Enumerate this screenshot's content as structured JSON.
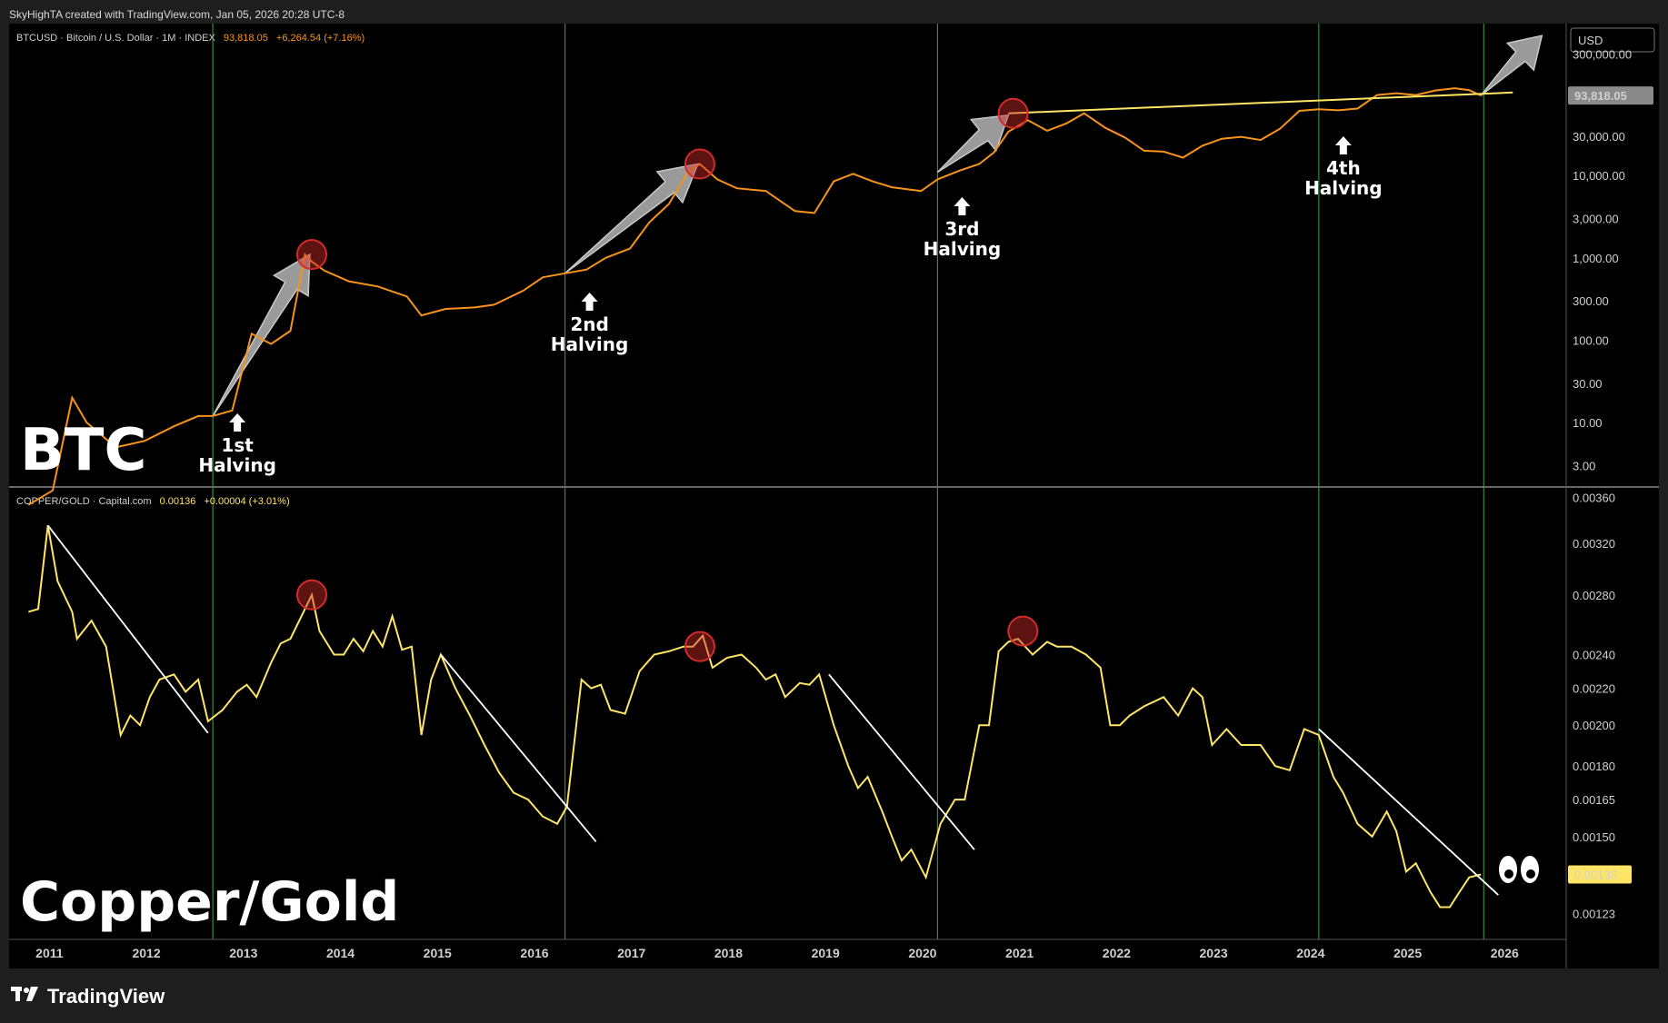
{
  "watermark": "SkyHighTA created with TradingView.com, Jan 05, 2026 20:28 UTC-8",
  "footer": {
    "brand": "TradingView",
    "logo": "tradingview-logo-icon"
  },
  "colors": {
    "btc": "#f7931a",
    "copper_gold": "#ffe566",
    "halving_line": "#3a8a3a",
    "peak_circle": "#d12b2b",
    "arrow": "#9a9a9a",
    "trendline": "#ffffff",
    "resistance": "#ffe566"
  },
  "top_pane": {
    "legend": {
      "symbol": "BTCUSD · Bitcoin / U.S. Dollar · 1M · INDEX",
      "price": "93,818.05",
      "change": "+6,264.54 (+7.16%)"
    },
    "currency_button": "USD",
    "big_label": "BTC",
    "last_price_tag": "93,818.05",
    "halvings": [
      {
        "line1": "1st",
        "line2": "Halving",
        "date": 2012.9
      },
      {
        "line1": "2nd",
        "line2": "Halving",
        "date": 2016.53
      },
      {
        "line1": "3rd",
        "line2": "Halving",
        "date": 2020.37
      },
      {
        "line1": "4th",
        "line2": "Halving",
        "date": 2024.3
      }
    ]
  },
  "bottom_pane": {
    "legend": {
      "symbol": "COPPER/GOLD · Capital.com",
      "price": "0.00136",
      "change": "+0.00004 (+3.01%)"
    },
    "big_label": "Copper/Gold",
    "last_price_tag": "0.00136",
    "eyes_icon": "eyes-icon"
  },
  "chart_data": [
    {
      "type": "line",
      "scale": "log",
      "series": [
        {
          "name": "BTCUSD",
          "x": [
            2011.0,
            2011.25,
            2011.45,
            2011.6,
            2011.9,
            2012.2,
            2012.5,
            2012.75,
            2012.9,
            2013.1,
            2013.3,
            2013.5,
            2013.7,
            2013.85,
            2013.92,
            2014.05,
            2014.3,
            2014.6,
            2014.9,
            2015.05,
            2015.3,
            2015.6,
            2015.8,
            2016.1,
            2016.3,
            2016.53,
            2016.75,
            2016.95,
            2017.2,
            2017.4,
            2017.6,
            2017.8,
            2017.92,
            2018.1,
            2018.3,
            2018.6,
            2018.9,
            2019.1,
            2019.3,
            2019.5,
            2019.7,
            2019.9,
            2020.2,
            2020.37,
            2020.6,
            2020.8,
            2020.95,
            2021.1,
            2021.3,
            2021.5,
            2021.7,
            2021.88,
            2022.1,
            2022.3,
            2022.5,
            2022.7,
            2022.9,
            2023.1,
            2023.3,
            2023.5,
            2023.7,
            2023.9,
            2024.1,
            2024.3,
            2024.5,
            2024.7,
            2024.9,
            2025.1,
            2025.3,
            2025.5,
            2025.7,
            2025.85,
            2025.97
          ],
          "values": [
            1,
            1.5,
            20,
            10,
            5,
            6,
            9,
            12,
            12,
            14,
            120,
            90,
            130,
            1100,
            900,
            700,
            520,
            450,
            340,
            200,
            240,
            250,
            270,
            400,
            580,
            650,
            720,
            1000,
            1300,
            2700,
            4500,
            11000,
            13800,
            9000,
            7000,
            6500,
            3700,
            3500,
            8500,
            10500,
            8500,
            7200,
            6500,
            9000,
            11500,
            13800,
            19000,
            34000,
            47000,
            35000,
            43000,
            57000,
            38000,
            29000,
            20000,
            19500,
            16500,
            23000,
            28000,
            29500,
            27000,
            37000,
            61000,
            64000,
            62000,
            65000,
            95000,
            100000,
            95000,
            108000,
            115000,
            109000,
            93818
          ]
        }
      ],
      "y_ticks": [
        "300,000.00",
        "30,000.00",
        "10,000.00",
        "3,000.00",
        "1,000.00",
        "300.00",
        "100.00",
        "30.00",
        "10.00",
        "3.00"
      ],
      "y_tick_values": [
        300000,
        30000,
        10000,
        3000,
        1000,
        300,
        100,
        30,
        10,
        3
      ],
      "ylim": [
        1.65,
        700000
      ],
      "resistance": {
        "x": [
          2021.1,
          2026.3
        ],
        "values": [
          57000,
          102000
        ]
      },
      "peaks": [
        {
          "x": 2013.92,
          "value": 1100
        },
        {
          "x": 2017.92,
          "value": 13800
        },
        {
          "x": 2021.15,
          "value": 57000
        }
      ],
      "arrows": [
        {
          "from": [
            2012.9,
            12
          ],
          "to": [
            2013.9,
            1100
          ]
        },
        {
          "from": [
            2016.53,
            650
          ],
          "to": [
            2017.9,
            13800
          ]
        },
        {
          "from": [
            2020.37,
            11000
          ],
          "to": [
            2021.1,
            54000
          ]
        },
        {
          "from": [
            2025.97,
            93818
          ],
          "to": [
            2026.6,
            500000
          ]
        }
      ]
    },
    {
      "type": "line",
      "scale": "log",
      "series": [
        {
          "name": "COPPER/GOLD",
          "x": [
            2011.0,
            2011.1,
            2011.2,
            2011.3,
            2011.45,
            2011.5,
            2011.65,
            2011.8,
            2011.95,
            2012.05,
            2012.15,
            2012.25,
            2012.35,
            2012.5,
            2012.62,
            2012.75,
            2012.85,
            2013.0,
            2013.15,
            2013.25,
            2013.35,
            2013.5,
            2013.6,
            2013.7,
            2013.85,
            2013.92,
            2014.0,
            2014.15,
            2014.25,
            2014.35,
            2014.45,
            2014.55,
            2014.65,
            2014.75,
            2014.85,
            2014.95,
            2015.05,
            2015.15,
            2015.25,
            2015.4,
            2015.55,
            2015.7,
            2015.85,
            2016.0,
            2016.15,
            2016.3,
            2016.45,
            2016.55,
            2016.7,
            2016.8,
            2016.9,
            2017.0,
            2017.15,
            2017.3,
            2017.45,
            2017.6,
            2017.75,
            2017.85,
            2017.95,
            2018.05,
            2018.2,
            2018.35,
            2018.5,
            2018.6,
            2018.7,
            2018.8,
            2018.95,
            2019.05,
            2019.15,
            2019.3,
            2019.45,
            2019.55,
            2019.65,
            2019.8,
            2019.9,
            2020.0,
            2020.1,
            2020.25,
            2020.4,
            2020.55,
            2020.65,
            2020.8,
            2020.9,
            2021.0,
            2021.1,
            2021.2,
            2021.35,
            2021.5,
            2021.6,
            2021.75,
            2021.9,
            2022.05,
            2022.15,
            2022.25,
            2022.35,
            2022.5,
            2022.7,
            2022.85,
            2023.0,
            2023.1,
            2023.2,
            2023.35,
            2023.5,
            2023.7,
            2023.85,
            2024.0,
            2024.15,
            2024.3,
            2024.45,
            2024.55,
            2024.7,
            2024.85,
            2025.0,
            2025.1,
            2025.2,
            2025.3,
            2025.45,
            2025.55,
            2025.65,
            2025.75,
            2025.85,
            2025.97
          ],
          "values": [
            0.00268,
            0.0027,
            0.00335,
            0.0029,
            0.00268,
            0.0025,
            0.00262,
            0.00245,
            0.00195,
            0.00205,
            0.002,
            0.00215,
            0.00225,
            0.00228,
            0.00218,
            0.00225,
            0.00202,
            0.00208,
            0.00218,
            0.00222,
            0.00215,
            0.00235,
            0.00247,
            0.0025,
            0.0027,
            0.0028,
            0.00255,
            0.0024,
            0.0024,
            0.0025,
            0.00242,
            0.00255,
            0.00245,
            0.00265,
            0.00243,
            0.00245,
            0.00195,
            0.00225,
            0.0024,
            0.0022,
            0.00205,
            0.0019,
            0.00177,
            0.00168,
            0.00165,
            0.00158,
            0.00155,
            0.00162,
            0.00225,
            0.0022,
            0.00222,
            0.00208,
            0.00206,
            0.0023,
            0.0024,
            0.00242,
            0.00245,
            0.00245,
            0.00252,
            0.00232,
            0.00238,
            0.0024,
            0.00232,
            0.00225,
            0.00228,
            0.00215,
            0.00223,
            0.00222,
            0.00228,
            0.002,
            0.0018,
            0.0017,
            0.00175,
            0.0016,
            0.0015,
            0.00141,
            0.00145,
            0.00135,
            0.00155,
            0.00165,
            0.00165,
            0.002,
            0.002,
            0.00242,
            0.00248,
            0.0025,
            0.0024,
            0.00248,
            0.00245,
            0.00245,
            0.0024,
            0.00232,
            0.002,
            0.002,
            0.00205,
            0.0021,
            0.00215,
            0.00205,
            0.0022,
            0.00215,
            0.0019,
            0.00198,
            0.0019,
            0.0019,
            0.0018,
            0.00178,
            0.00198,
            0.00195,
            0.00175,
            0.00168,
            0.00155,
            0.0015,
            0.0016,
            0.00152,
            0.00137,
            0.0014,
            0.0013,
            0.00125,
            0.00125,
            0.0013,
            0.00135,
            0.00136
          ]
        }
      ],
      "y_ticks": [
        "0.00360",
        "0.00320",
        "0.00280",
        "0.00240",
        "0.00220",
        "0.00200",
        "0.00180",
        "0.00165",
        "0.00150",
        "0.00123"
      ],
      "y_tick_values": [
        0.0036,
        0.0032,
        0.0028,
        0.0024,
        0.0022,
        0.002,
        0.0018,
        0.00165,
        0.0015,
        0.00123
      ],
      "ylim": [
        0.00115,
        0.0037
      ],
      "peaks": [
        {
          "x": 2013.92,
          "value": 0.0028
        },
        {
          "x": 2017.92,
          "value": 0.00245
        },
        {
          "x": 2021.25,
          "value": 0.00255
        }
      ],
      "trendlines": [
        {
          "from": [
            2011.2,
            0.00335
          ],
          "to": [
            2012.85,
            0.00196
          ]
        },
        {
          "from": [
            2015.25,
            0.0024
          ],
          "to": [
            2016.85,
            0.00148
          ]
        },
        {
          "from": [
            2019.25,
            0.00228
          ],
          "to": [
            2020.75,
            0.00145
          ]
        },
        {
          "from": [
            2024.3,
            0.00198
          ],
          "to": [
            2026.15,
            0.00129
          ]
        }
      ]
    }
  ],
  "x_axis": {
    "ticks": [
      "2011",
      "2012",
      "2013",
      "2014",
      "2015",
      "2016",
      "2017",
      "2018",
      "2019",
      "2020",
      "2021",
      "2022",
      "2023",
      "2024",
      "2025",
      "2026"
    ],
    "range": [
      2010.8,
      2026.85
    ]
  }
}
